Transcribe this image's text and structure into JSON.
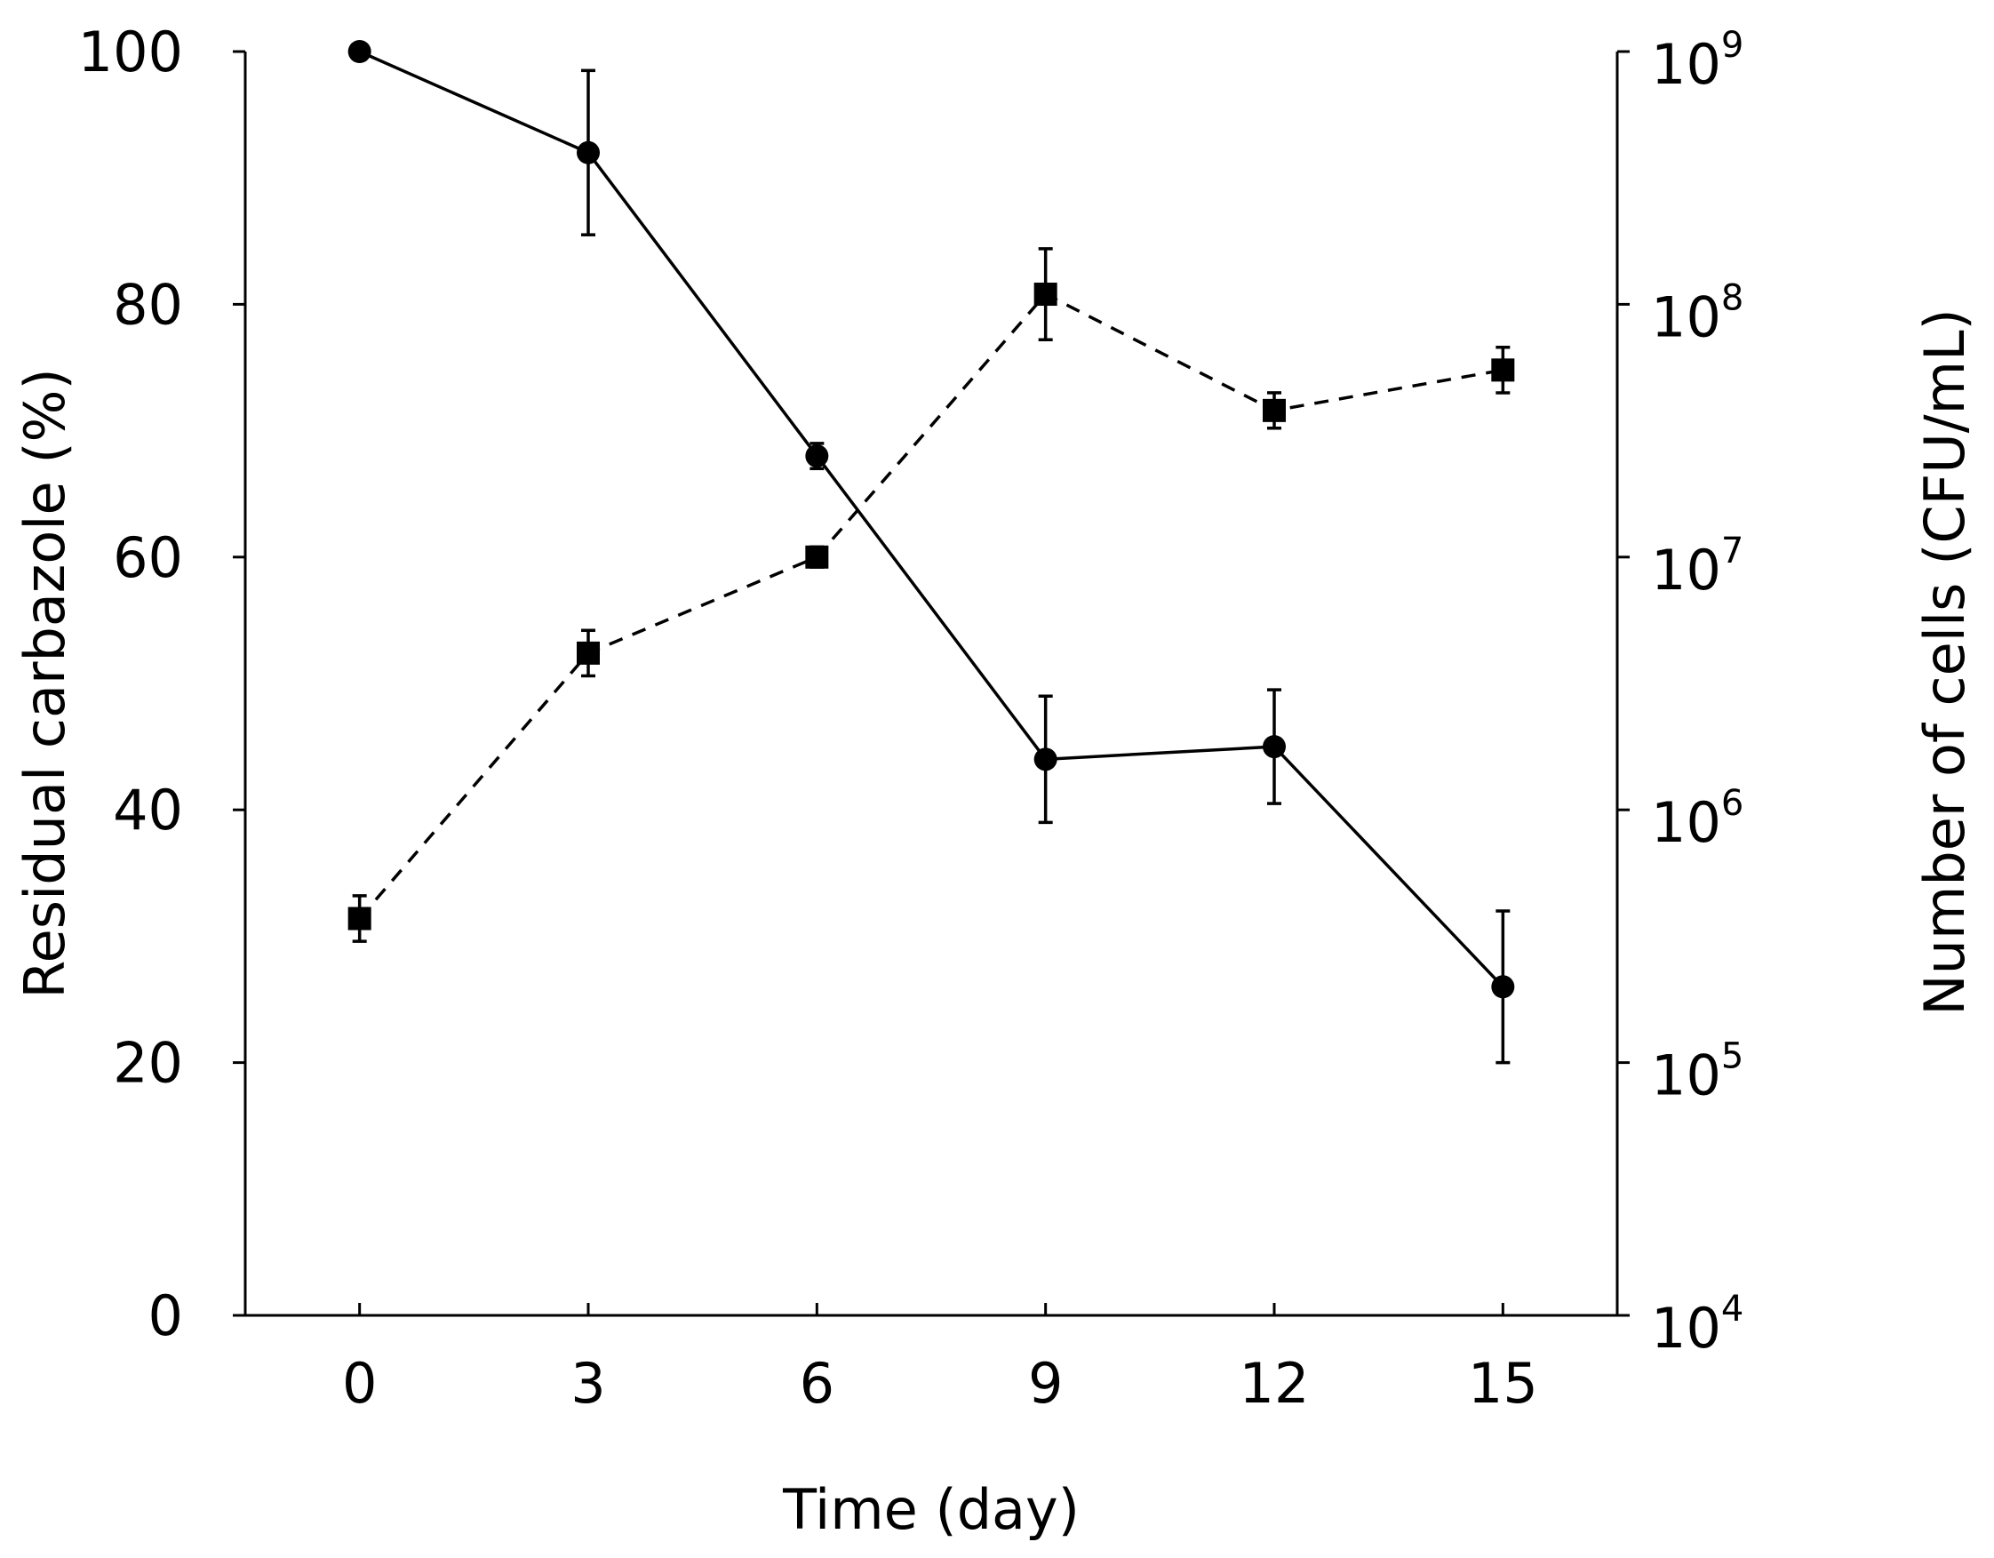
{
  "chart_data": {
    "type": "line",
    "xlabel": "Time (day)",
    "ylabel_left": "Residual carbazole (%)",
    "ylabel_right": "Number of cells (CFU/mL)",
    "x_ticks": [
      0,
      3,
      6,
      9,
      12,
      15
    ],
    "x_tick_labels": [
      "0",
      "3",
      "6",
      "9",
      "12",
      "15"
    ],
    "xlim": [
      -1.5,
      16.5
    ],
    "y_left_ticks": [
      0,
      20,
      40,
      60,
      80,
      100
    ],
    "y_left_tick_labels": [
      "0",
      "20",
      "40",
      "60",
      "80",
      "100"
    ],
    "ylim_left": [
      0,
      100
    ],
    "y_right_ticks": [
      {
        "base": "10",
        "exp": "4",
        "value": 4
      },
      {
        "base": "10",
        "exp": "5",
        "value": 5
      },
      {
        "base": "10",
        "exp": "6",
        "value": 6
      },
      {
        "base": "10",
        "exp": "7",
        "value": 7
      },
      {
        "base": "10",
        "exp": "8",
        "value": 8
      },
      {
        "base": "10",
        "exp": "9",
        "value": 9
      }
    ],
    "ylim_right_log10": [
      4,
      9
    ],
    "series": [
      {
        "name": "Residual carbazole",
        "axis": "left",
        "marker": "circle",
        "style": "solid",
        "x": [
          0,
          3,
          6,
          9,
          12,
          15
        ],
        "y": [
          100,
          92,
          68,
          44,
          45,
          26
        ],
        "err": [
          0,
          6.5,
          1,
          5,
          4.5,
          6
        ]
      },
      {
        "name": "Number of cells",
        "axis": "right",
        "marker": "square",
        "style": "dashed",
        "x": [
          0,
          3,
          6,
          9,
          12,
          15
        ],
        "y_log10": [
          5.57,
          6.62,
          7.0,
          8.04,
          7.58,
          7.74
        ],
        "err_log10": [
          0.09,
          0.09,
          0.04,
          0.18,
          0.07,
          0.09
        ]
      }
    ]
  }
}
